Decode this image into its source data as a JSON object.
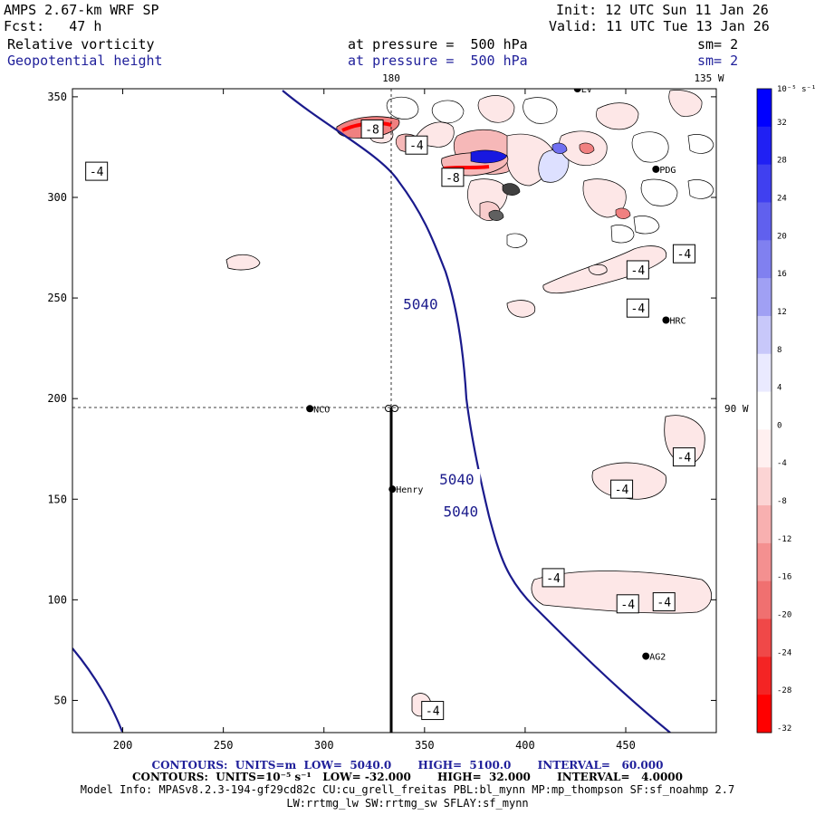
{
  "header": {
    "model": "AMPS 2.67-km WRF SP",
    "forecast": "Fcst:   47 h",
    "init": "Init: 12 UTC Sun 11 Jan 26",
    "valid": "Valid: 11 UTC Tue 13 Jan 26",
    "field1_name": "Relative vorticity",
    "field1_level": "at pressure =  500 hPa",
    "field1_sm": "sm= 2",
    "field2_name": "Geopotential height",
    "field2_level": "at pressure =  500 hPa",
    "field2_sm": "sm= 2"
  },
  "map_labels": {
    "lon_180": "180",
    "lon_135w": "135 W",
    "lon_90w": "90 W"
  },
  "stations": [
    {
      "name": "NCO",
      "x": 293,
      "y": 195
    },
    {
      "name": "Henry",
      "x": 334,
      "y": 155
    },
    {
      "name": "HRC",
      "x": 470,
      "y": 239
    },
    {
      "name": "PDG",
      "x": 465,
      "y": 314
    },
    {
      "name": "AG2",
      "x": 460,
      "y": 72
    },
    {
      "name": "LV",
      "x": 426,
      "y": 354
    }
  ],
  "footer": {
    "contours1": "CONTOURS:  UNITS=m  LOW=  5040.0       HIGH=  5100.0       INTERVAL=   60.000",
    "contours2": "CONTOURS:  UNITS=10⁻⁵ s⁻¹   LOW= -32.000       HIGH=  32.000       INTERVAL=   4.0000",
    "model_info": "Model Info: MPASv8.2.3-194-gf29cd82c CU:cu_grell_freitas PBL:bl_mynn MP:mp_thompson SF:sf_noahmp 2.7",
    "model_info2": "LW:rrtmg_lw SW:rrtmg_sw SFLAY:sf_mynn"
  },
  "colorbar": {
    "unit_label": "10⁻⁵ s⁻¹",
    "ticks": [
      32,
      28,
      24,
      20,
      16,
      12,
      8,
      4,
      0,
      -4,
      -8,
      -12,
      -16,
      -20,
      -24,
      -28,
      -32
    ],
    "colors": [
      "#0000ff",
      "#2020f4",
      "#4040f0",
      "#6060ee",
      "#8080f0",
      "#a0a0f4",
      "#c8c8fa",
      "#eaeaff",
      "#ffffff",
      "#fff0f0",
      "#fcd4d4",
      "#f8b0b0",
      "#f49090",
      "#f07070",
      "#f04848",
      "#f42424",
      "#ff0000"
    ]
  },
  "chart_data": {
    "type": "contour",
    "title": "Relative vorticity / Geopotential height at 500 hPa",
    "xlim": [
      175,
      495
    ],
    "ylim": [
      34,
      354
    ],
    "xticks": [
      200,
      250,
      300,
      350,
      400,
      450
    ],
    "yticks": [
      50,
      100,
      150,
      200,
      250,
      300,
      350
    ],
    "height_contour_label": "5040",
    "height_contour_labels": [
      {
        "text": "5040",
        "x": 348,
        "y": 247
      },
      {
        "text": "5040",
        "x": 366,
        "y": 160
      },
      {
        "text": "5040",
        "x": 368,
        "y": 144
      }
    ],
    "vorticity_labels": [
      {
        "text": "-4",
        "x": 187,
        "y": 313
      },
      {
        "text": "-8",
        "x": 324,
        "y": 334
      },
      {
        "text": "-4",
        "x": 346,
        "y": 326
      },
      {
        "text": "-8",
        "x": 364,
        "y": 310
      },
      {
        "text": "-4",
        "x": 479,
        "y": 272
      },
      {
        "text": "-4",
        "x": 456,
        "y": 264
      },
      {
        "text": "-4",
        "x": 456,
        "y": 245
      },
      {
        "text": "-4",
        "x": 479,
        "y": 171
      },
      {
        "text": "-4",
        "x": 448,
        "y": 155
      },
      {
        "text": "-4",
        "x": 414,
        "y": 111
      },
      {
        "text": "-4",
        "x": 451,
        "y": 98
      },
      {
        "text": "-4",
        "x": 469,
        "y": 99
      },
      {
        "text": "-4",
        "x": 354,
        "y": 45
      }
    ],
    "cross_section_marker": {
      "x": 334,
      "y": 195
    }
  }
}
